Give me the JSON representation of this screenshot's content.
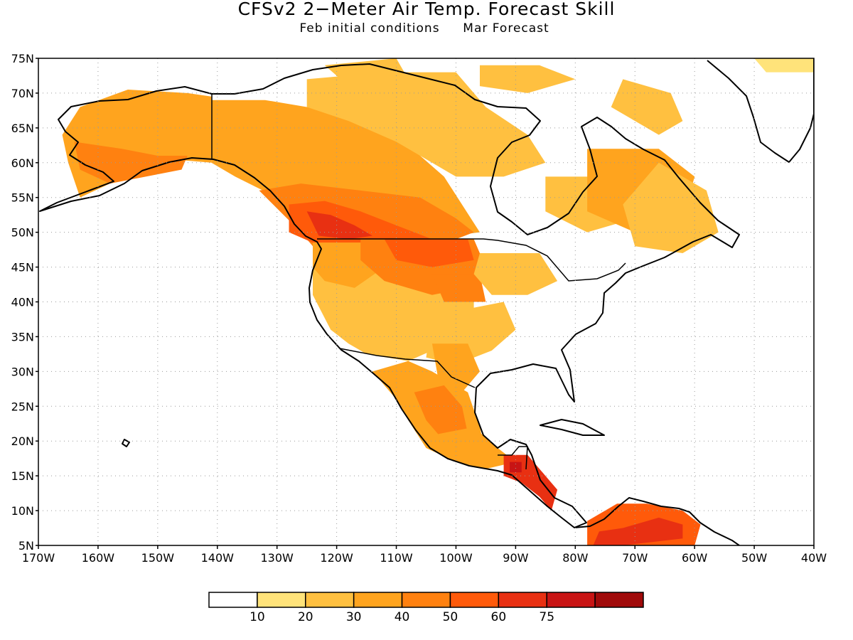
{
  "title": "CFSv2 2−Meter Air Temp. Forecast Skill",
  "subtitle_left": "Feb initial conditions",
  "subtitle_right": "Mar Forecast",
  "chart_data": {
    "type": "heatmap",
    "projection": "cylindrical-equidistant",
    "lon_range": [
      -170,
      -40
    ],
    "lat_range": [
      5,
      75
    ],
    "grid": true,
    "lat_ticks": [
      "75N",
      "70N",
      "65N",
      "60N",
      "55N",
      "50N",
      "45N",
      "40N",
      "35N",
      "30N",
      "25N",
      "20N",
      "15N",
      "10N",
      "5N"
    ],
    "lat_values": [
      75,
      70,
      65,
      60,
      55,
      50,
      45,
      40,
      35,
      30,
      25,
      20,
      15,
      10,
      5
    ],
    "lon_ticks": [
      "170W",
      "160W",
      "150W",
      "140W",
      "130W",
      "120W",
      "110W",
      "100W",
      "90W",
      "80W",
      "70W",
      "60W",
      "50W",
      "40W"
    ],
    "lon_values": [
      -170,
      -160,
      -150,
      -140,
      -130,
      -120,
      -110,
      -100,
      -90,
      -80,
      -70,
      -60,
      -50,
      -40
    ],
    "colorbar": {
      "labels": [
        "10",
        "20",
        "30",
        "40",
        "50",
        "60",
        "75"
      ],
      "colors": [
        "#ffffff",
        "#ffe37a",
        "#ffc040",
        "#ffa41e",
        "#ff8110",
        "#ff5a0a",
        "#e83012",
        "#c81414",
        "#a00a0a"
      ]
    },
    "regions": [
      {
        "name": "alaska",
        "level": 3,
        "pts": [
          [
            -163,
            68
          ],
          [
            -155,
            70.5
          ],
          [
            -145,
            70
          ],
          [
            -141,
            69.5
          ],
          [
            -141,
            60
          ],
          [
            -148,
            60.5
          ],
          [
            -153,
            59
          ],
          [
            -158,
            57
          ],
          [
            -163,
            55
          ],
          [
            -165,
            60
          ],
          [
            -166,
            64
          ]
        ]
      },
      {
        "name": "alaska-south",
        "level": 4,
        "pts": [
          [
            -164,
            63
          ],
          [
            -156,
            62
          ],
          [
            -150,
            61
          ],
          [
            -145,
            61
          ],
          [
            -146,
            59
          ],
          [
            -152,
            58
          ],
          [
            -158,
            57
          ],
          [
            -163,
            59
          ]
        ]
      },
      {
        "name": "canada-west",
        "level": 3,
        "pts": [
          [
            -141,
            69
          ],
          [
            -132,
            69
          ],
          [
            -125,
            68
          ],
          [
            -118,
            67
          ],
          [
            -110,
            64
          ],
          [
            -102,
            58
          ],
          [
            -96,
            50
          ],
          [
            -105,
            49
          ],
          [
            -123,
            49
          ],
          [
            -130,
            55
          ],
          [
            -137,
            58
          ],
          [
            -141,
            60
          ]
        ]
      },
      {
        "name": "canada-north",
        "level": 2,
        "pts": [
          [
            -125,
            72
          ],
          [
            -112,
            73
          ],
          [
            -100,
            73
          ],
          [
            -95,
            68
          ],
          [
            -88,
            64
          ],
          [
            -85,
            60
          ],
          [
            -92,
            58
          ],
          [
            -100,
            58
          ],
          [
            -110,
            63
          ],
          [
            -118,
            66
          ],
          [
            -125,
            68
          ]
        ]
      },
      {
        "name": "bc-band",
        "level": 4,
        "pts": [
          [
            -133,
            56
          ],
          [
            -126,
            57
          ],
          [
            -116,
            56
          ],
          [
            -106,
            55
          ],
          [
            -100,
            52
          ],
          [
            -97,
            50
          ],
          [
            -103,
            48
          ],
          [
            -115,
            47
          ],
          [
            -122,
            46
          ],
          [
            -126,
            50
          ]
        ]
      },
      {
        "name": "bc-core",
        "level": 5,
        "pts": [
          [
            -128,
            54
          ],
          [
            -122,
            54.5
          ],
          [
            -116,
            53
          ],
          [
            -110,
            51
          ],
          [
            -104,
            49
          ],
          [
            -110,
            48
          ],
          [
            -118,
            48
          ],
          [
            -124,
            48.5
          ],
          [
            -128,
            50
          ]
        ]
      },
      {
        "name": "bc-hot",
        "level": 6,
        "pts": [
          [
            -125,
            53
          ],
          [
            -121,
            52.5
          ],
          [
            -117,
            51
          ],
          [
            -114,
            49.5
          ],
          [
            -118,
            49
          ],
          [
            -123,
            49.5
          ]
        ]
      },
      {
        "name": "hudson-east",
        "level": 2,
        "pts": [
          [
            -85,
            58
          ],
          [
            -78,
            58
          ],
          [
            -72,
            57
          ],
          [
            -70,
            52
          ],
          [
            -78,
            50
          ],
          [
            -85,
            53
          ]
        ]
      },
      {
        "name": "quebec",
        "level": 3,
        "pts": [
          [
            -78,
            62
          ],
          [
            -66,
            62
          ],
          [
            -60,
            58
          ],
          [
            -62,
            52
          ],
          [
            -70,
            50
          ],
          [
            -78,
            53
          ]
        ]
      },
      {
        "name": "labrador",
        "level": 2,
        "pts": [
          [
            -66,
            60
          ],
          [
            -58,
            56
          ],
          [
            -56,
            50
          ],
          [
            -62,
            47
          ],
          [
            -70,
            48
          ],
          [
            -72,
            54
          ]
        ]
      },
      {
        "name": "arctic-1",
        "level": 2,
        "pts": [
          [
            -96,
            74
          ],
          [
            -86,
            74
          ],
          [
            -80,
            72
          ],
          [
            -88,
            70
          ],
          [
            -96,
            71
          ]
        ]
      },
      {
        "name": "arctic-2",
        "level": 2,
        "pts": [
          [
            -122,
            74
          ],
          [
            -110,
            75
          ],
          [
            -108,
            72
          ],
          [
            -118,
            71
          ]
        ]
      },
      {
        "name": "baffin",
        "level": 2,
        "pts": [
          [
            -72,
            72
          ],
          [
            -64,
            70
          ],
          [
            -62,
            66
          ],
          [
            -66,
            64
          ],
          [
            -74,
            68
          ]
        ]
      },
      {
        "name": "greenland-n",
        "level": 1,
        "pts": [
          [
            -50,
            75
          ],
          [
            -40,
            75
          ],
          [
            -40,
            73
          ],
          [
            -48,
            73
          ]
        ]
      },
      {
        "name": "us-west",
        "level": 2,
        "pts": [
          [
            -124,
            48.5
          ],
          [
            -104,
            48.5
          ],
          [
            -97,
            44
          ],
          [
            -97,
            37
          ],
          [
            -104,
            33
          ],
          [
            -108,
            31.5
          ],
          [
            -115,
            32.5
          ],
          [
            -118,
            34
          ],
          [
            -121,
            36
          ],
          [
            -124,
            41
          ]
        ]
      },
      {
        "name": "us-northwest",
        "level": 3,
        "pts": [
          [
            -124,
            48.5
          ],
          [
            -116,
            48.5
          ],
          [
            -112,
            45
          ],
          [
            -117,
            42
          ],
          [
            -122,
            43
          ],
          [
            -124,
            45
          ]
        ]
      },
      {
        "name": "montana-dakota",
        "level": 4,
        "pts": [
          [
            -116,
            49
          ],
          [
            -97,
            49
          ],
          [
            -95,
            45
          ],
          [
            -98,
            42
          ],
          [
            -104,
            41
          ],
          [
            -112,
            43
          ],
          [
            -116,
            46
          ]
        ]
      },
      {
        "name": "montana-hot",
        "level": 5,
        "pts": [
          [
            -112,
            49
          ],
          [
            -98,
            49
          ],
          [
            -97,
            46
          ],
          [
            -104,
            45
          ],
          [
            -110,
            46
          ]
        ]
      },
      {
        "name": "nebraska",
        "level": 4,
        "pts": [
          [
            -104,
            44
          ],
          [
            -96,
            44
          ],
          [
            -95,
            40
          ],
          [
            -102,
            40
          ]
        ]
      },
      {
        "name": "plains-south",
        "level": 2,
        "pts": [
          [
            -104,
            38
          ],
          [
            -92,
            40
          ],
          [
            -90,
            36
          ],
          [
            -94,
            33
          ],
          [
            -100,
            31
          ],
          [
            -105,
            32
          ]
        ]
      },
      {
        "name": "texas",
        "level": 3,
        "pts": [
          [
            -104,
            34
          ],
          [
            -98,
            34
          ],
          [
            -96,
            30
          ],
          [
            -99,
            27
          ],
          [
            -103,
            29
          ]
        ]
      },
      {
        "name": "midwest",
        "level": 2,
        "pts": [
          [
            -96,
            47
          ],
          [
            -86,
            47
          ],
          [
            -83,
            43
          ],
          [
            -88,
            41
          ],
          [
            -94,
            41
          ],
          [
            -97,
            44
          ]
        ]
      },
      {
        "name": "mexico",
        "level": 3,
        "pts": [
          [
            -114,
            30
          ],
          [
            -108,
            31.5
          ],
          [
            -104,
            30
          ],
          [
            -98,
            27
          ],
          [
            -96,
            22
          ],
          [
            -95,
            18
          ],
          [
            -100,
            17
          ],
          [
            -105,
            19
          ],
          [
            -108,
            23
          ],
          [
            -110,
            26
          ],
          [
            -112,
            28
          ]
        ]
      },
      {
        "name": "mexico-hot",
        "level": 4,
        "pts": [
          [
            -107,
            27
          ],
          [
            -102,
            28
          ],
          [
            -99,
            25
          ],
          [
            -98,
            21
          ],
          [
            -102,
            20
          ],
          [
            -105,
            23
          ]
        ]
      },
      {
        "name": "mexico-south",
        "level": 3,
        "pts": [
          [
            -103,
            21
          ],
          [
            -97,
            22
          ],
          [
            -93,
            19
          ],
          [
            -90,
            17
          ],
          [
            -95,
            16
          ],
          [
            -100,
            17
          ]
        ]
      },
      {
        "name": "central-am",
        "level": 6,
        "pts": [
          [
            -92,
            18
          ],
          [
            -88,
            18
          ],
          [
            -85,
            15
          ],
          [
            -83,
            13
          ],
          [
            -84,
            10
          ],
          [
            -86,
            12
          ],
          [
            -89,
            14
          ],
          [
            -92,
            15
          ]
        ]
      },
      {
        "name": "central-am-core",
        "level": 7,
        "pts": [
          [
            -91,
            17
          ],
          [
            -89,
            17
          ],
          [
            -89,
            15.5
          ],
          [
            -91,
            15.5
          ]
        ]
      },
      {
        "name": "south-am",
        "level": 5,
        "pts": [
          [
            -78,
            8.5
          ],
          [
            -73,
            11
          ],
          [
            -68,
            11
          ],
          [
            -62,
            10
          ],
          [
            -59,
            8
          ],
          [
            -60,
            5
          ],
          [
            -70,
            5
          ],
          [
            -78,
            5
          ]
        ]
      },
      {
        "name": "south-am-core",
        "level": 6,
        "pts": [
          [
            -76,
            7
          ],
          [
            -72,
            7.5
          ],
          [
            -66,
            9
          ],
          [
            -62,
            8
          ],
          [
            -62,
            6
          ],
          [
            -72,
            5
          ],
          [
            -77,
            5
          ]
        ]
      }
    ]
  }
}
